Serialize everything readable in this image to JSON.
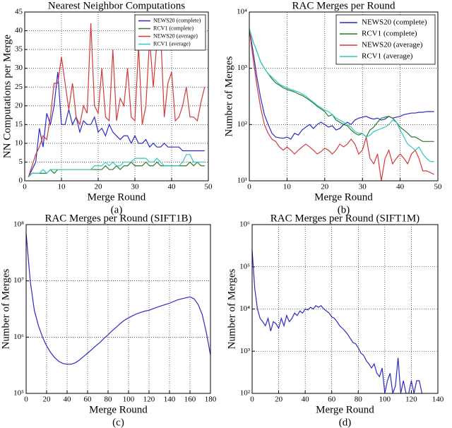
{
  "chart_data": [
    {
      "type": "line",
      "title": "Nearest Neighbor Computations",
      "xlabel": "Merge Round",
      "ylabel": "NN Computations per Merge",
      "caption": "(a)",
      "x": [
        1,
        2,
        3,
        4,
        5,
        6,
        7,
        8,
        9,
        10,
        11,
        12,
        13,
        14,
        15,
        16,
        17,
        18,
        19,
        20,
        21,
        22,
        23,
        24,
        25,
        26,
        27,
        28,
        29,
        30,
        31,
        32,
        33,
        34,
        35,
        36,
        37,
        38,
        39,
        40,
        41,
        42,
        43,
        44,
        45,
        46,
        47,
        48,
        49
      ],
      "series": [
        {
          "name": "NEWS20 (complete)",
          "color": "#2b2bc4",
          "values": [
            1,
            3,
            5,
            14,
            9,
            18,
            15,
            20,
            29,
            15,
            15,
            19,
            15,
            17,
            13,
            16,
            15,
            15,
            17,
            13,
            14,
            12,
            15,
            13,
            12,
            11,
            12,
            12,
            10,
            12,
            10,
            10,
            11,
            9,
            10,
            9,
            9,
            10,
            9,
            9,
            9,
            9,
            8,
            8,
            8,
            8,
            8,
            8,
            8
          ]
        },
        {
          "name": "RCV1 (complete)",
          "color": "#2a7a2a",
          "values": [
            1,
            2,
            2,
            2,
            2,
            2,
            3,
            2,
            3,
            3,
            3,
            3,
            3,
            3,
            3,
            3,
            3,
            3,
            3,
            3,
            3,
            4,
            3,
            3,
            4,
            3,
            4,
            4,
            5,
            4,
            4,
            4,
            5,
            4,
            4,
            5,
            4,
            4,
            4,
            4,
            4,
            4,
            4,
            4,
            5,
            4,
            5,
            4,
            4
          ]
        },
        {
          "name": "NEWS20 (average)",
          "color": "#d23a3a",
          "values": [
            1,
            4,
            7,
            9,
            12,
            11,
            17,
            26,
            26,
            33,
            26,
            19,
            26,
            17,
            15,
            20,
            18,
            42,
            20,
            18,
            30,
            17,
            16,
            35,
            16,
            22,
            20,
            30,
            17,
            16,
            36,
            15,
            20,
            38,
            25,
            37,
            40,
            17,
            26,
            29,
            16,
            17,
            20,
            25,
            17,
            17,
            16,
            21,
            25
          ]
        },
        {
          "name": "RCV1 (average)",
          "color": "#30c8c0",
          "values": [
            1,
            2,
            2,
            2,
            3,
            2,
            3,
            3,
            3,
            3,
            3,
            3,
            3,
            3,
            3,
            3,
            3,
            3,
            4,
            4,
            4,
            5,
            4,
            5,
            4,
            4,
            5,
            5,
            5,
            6,
            6,
            6,
            6,
            5,
            5,
            6,
            5,
            4,
            4,
            4,
            4,
            4,
            5,
            7,
            7,
            5,
            5,
            5,
            5
          ]
        }
      ],
      "xlim": [
        0,
        50
      ],
      "xticks": [
        0,
        10,
        20,
        30,
        40,
        50
      ],
      "ylim": [
        0,
        45
      ],
      "yticks": [
        0,
        5,
        10,
        15,
        20,
        25,
        30,
        35,
        40,
        45
      ],
      "ylog": false,
      "grid": true,
      "legend": "upper right"
    },
    {
      "type": "line",
      "title": "RAC Merges per Round",
      "xlabel": "Merge Round",
      "ylabel": "Number of Merges",
      "caption": "(b)",
      "x": [
        0,
        1,
        2,
        3,
        4,
        5,
        6,
        7,
        8,
        9,
        10,
        11,
        12,
        13,
        14,
        15,
        16,
        17,
        18,
        19,
        20,
        21,
        22,
        23,
        24,
        25,
        26,
        27,
        28,
        29,
        30,
        31,
        32,
        33,
        34,
        35,
        36,
        37,
        38,
        39,
        40,
        41,
        42,
        43,
        44,
        45,
        46,
        47,
        48,
        49
      ],
      "series": [
        {
          "name": "NEWS20 (complete)",
          "color": "#2b2bc4",
          "values": [
            5000,
            2000,
            700,
            300,
            150,
            100,
            70,
            60,
            58,
            57,
            60,
            55,
            70,
            65,
            80,
            90,
            100,
            85,
            100,
            110,
            100,
            90,
            95,
            80,
            85,
            100,
            110,
            100,
            120,
            130,
            135,
            140,
            130,
            125,
            130,
            120,
            125,
            140,
            130,
            135,
            140,
            150,
            155,
            160,
            160,
            165,
            165,
            170,
            170,
            170
          ]
        },
        {
          "name": "RCV1 (complete)",
          "color": "#2a7a2a",
          "values": [
            5000,
            3000,
            2000,
            1300,
            1000,
            800,
            650,
            550,
            500,
            450,
            420,
            400,
            380,
            350,
            330,
            300,
            270,
            240,
            210,
            190,
            170,
            140,
            150,
            120,
            110,
            100,
            95,
            80,
            70,
            65,
            70,
            60,
            80,
            90,
            110,
            130,
            135,
            140,
            130,
            110,
            90,
            80,
            70,
            60,
            60,
            55,
            50,
            50,
            50,
            50
          ]
        },
        {
          "name": "NEWS20 (average)",
          "color": "#d23a3a",
          "values": [
            5000,
            1500,
            500,
            200,
            100,
            70,
            55,
            50,
            40,
            35,
            40,
            35,
            30,
            35,
            40,
            45,
            40,
            35,
            30,
            33,
            38,
            35,
            30,
            35,
            45,
            40,
            45,
            55,
            45,
            30,
            35,
            60,
            25,
            20,
            30,
            10,
            25,
            35,
            20,
            25,
            30,
            25,
            20,
            30,
            35,
            25,
            15,
            15,
            14,
            13
          ]
        },
        {
          "name": "RCV1 (average)",
          "color": "#30c8c0",
          "values": [
            5000,
            3000,
            2000,
            1300,
            1000,
            800,
            700,
            600,
            520,
            480,
            450,
            420,
            400,
            380,
            350,
            320,
            280,
            250,
            220,
            200,
            180,
            170,
            150,
            130,
            120,
            110,
            100,
            90,
            75,
            70,
            70,
            60,
            65,
            75,
            80,
            85,
            90,
            100,
            120,
            110,
            80,
            60,
            45,
            40,
            35,
            40,
            30,
            25,
            22,
            22
          ]
        }
      ],
      "xlim": [
        0,
        50
      ],
      "xticks": [
        0,
        10,
        20,
        30,
        40,
        50
      ],
      "ylim": [
        10,
        10000
      ],
      "yticks": [
        {
          "value": 10,
          "label": "10¹"
        },
        {
          "value": 100,
          "label": "10²"
        },
        {
          "value": 1000,
          "label": "10³"
        },
        {
          "value": 10000,
          "label": "10⁴"
        }
      ],
      "ylog": true,
      "grid": true,
      "legend": "upper right"
    },
    {
      "type": "line",
      "title": "RAC Merges per Round (SIFT1B)",
      "xlabel": "Merge Round",
      "ylabel": "Number of Merges",
      "caption": "(c)",
      "x": [
        0,
        4,
        8,
        12,
        16,
        20,
        24,
        28,
        32,
        36,
        40,
        44,
        48,
        52,
        56,
        60,
        64,
        68,
        72,
        76,
        80,
        84,
        88,
        92,
        96,
        100,
        104,
        108,
        112,
        116,
        120,
        124,
        128,
        132,
        136,
        140,
        144,
        148,
        152,
        156,
        160,
        164,
        168,
        172,
        176,
        180
      ],
      "series": [
        {
          "color": "#2b2bc4",
          "values": [
            70000000,
            10000000,
            3000000,
            1600000,
            1000000,
            700000,
            530000,
            430000,
            370000,
            340000,
            330000,
            330000,
            350000,
            390000,
            450000,
            520000,
            600000,
            700000,
            800000,
            950000,
            1100000,
            1300000,
            1500000,
            1750000,
            2000000,
            2200000,
            2400000,
            2600000,
            2750000,
            2900000,
            3000000,
            3200000,
            3400000,
            3600000,
            3800000,
            4000000,
            4300000,
            4600000,
            4800000,
            5000000,
            5200000,
            4800000,
            3800000,
            2500000,
            1200000,
            480000
          ]
        }
      ],
      "xlim": [
        0,
        180
      ],
      "xticks": [
        0,
        20,
        40,
        60,
        80,
        100,
        120,
        140,
        160,
        180
      ],
      "ylim": [
        100000,
        100000000
      ],
      "yticks": [
        {
          "value": 100000,
          "label": "10⁵"
        },
        {
          "value": 1000000,
          "label": "10⁶"
        },
        {
          "value": 10000000,
          "label": "10⁷"
        },
        {
          "value": 100000000,
          "label": "10⁸"
        }
      ],
      "ylog": true,
      "grid": true
    },
    {
      "type": "line",
      "title": "RAC Merges per Round (SIFT1M)",
      "xlabel": "Merge Round",
      "ylabel": "Number of Merges",
      "caption": "(d)",
      "x": [
        0,
        2,
        4,
        6,
        8,
        10,
        12,
        14,
        16,
        18,
        20,
        22,
        24,
        26,
        28,
        30,
        32,
        34,
        36,
        38,
        40,
        42,
        44,
        46,
        48,
        50,
        52,
        54,
        56,
        58,
        60,
        62,
        64,
        66,
        68,
        70,
        72,
        74,
        76,
        78,
        80,
        82,
        84,
        86,
        88,
        90,
        92,
        94,
        96,
        98,
        100,
        102,
        104,
        106,
        108,
        110,
        112,
        114,
        116,
        118,
        120,
        122,
        124,
        126,
        128
      ],
      "series": [
        {
          "color": "#2b2bc4",
          "values": [
            250000,
            30000,
            10000,
            6000,
            5000,
            4000,
            6000,
            3000,
            5000,
            4500,
            3500,
            6000,
            4000,
            7000,
            5000,
            6000,
            8000,
            7000,
            9000,
            8000,
            10000,
            9500,
            11000,
            10000,
            12000,
            11000,
            12000,
            10000,
            9000,
            8000,
            6500,
            6000,
            5000,
            4000,
            3500,
            3000,
            2500,
            2000,
            1600,
            1500,
            1200,
            900,
            800,
            600,
            500,
            400,
            500,
            300,
            250,
            400,
            100,
            200,
            300,
            100,
            150,
            700,
            100,
            200,
            100,
            100,
            200,
            100,
            200,
            200,
            100
          ]
        }
      ],
      "xlim": [
        0,
        140
      ],
      "xticks": [
        0,
        20,
        40,
        60,
        80,
        100,
        120,
        140
      ],
      "ylim": [
        100,
        1000000
      ],
      "yticks": [
        {
          "value": 100,
          "label": "10²"
        },
        {
          "value": 1000,
          "label": "10³"
        },
        {
          "value": 10000,
          "label": "10⁴"
        },
        {
          "value": 100000,
          "label": "10⁵"
        },
        {
          "value": 1000000,
          "label": "10⁶"
        }
      ],
      "ylog": true,
      "grid": true
    }
  ]
}
